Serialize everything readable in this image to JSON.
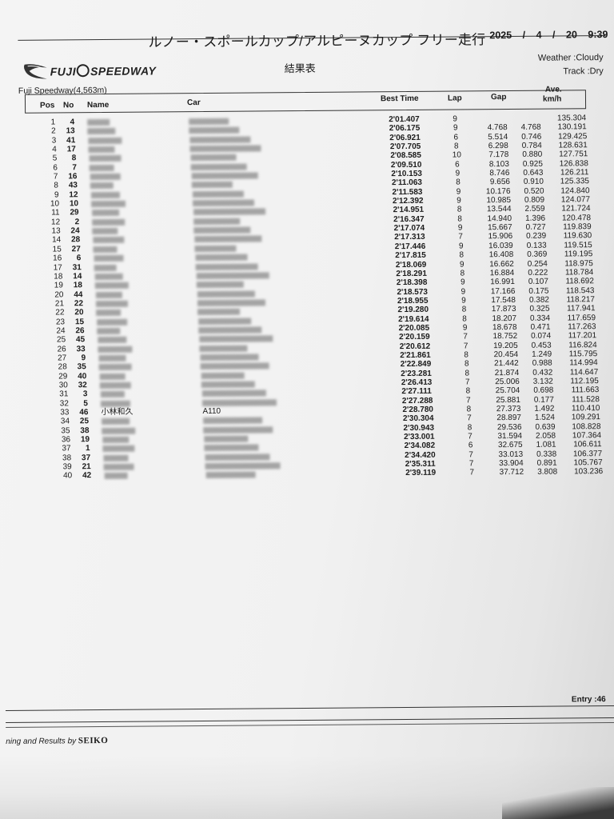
{
  "title": "ルノー・スポールカップ/アルピーヌカップ フリー走行",
  "date": "2025 / 4 / 20",
  "time": "9:39",
  "logo_text": "FUJI SPEEDWAY",
  "subtitle": "結果表",
  "weather": "Weather :Cloudy",
  "track_condition": "Track :Dry",
  "circuit": "Fuji Speedway(4,563m)",
  "columns": {
    "pos": "Pos",
    "no": "No",
    "name": "Name",
    "car": "Car",
    "best": "Best Time",
    "lap": "Lap",
    "gap": "Gap",
    "ave1": "Ave.",
    "ave2": "km/h"
  },
  "rows": [
    {
      "pos": "1",
      "no": "4",
      "name": "",
      "car": "",
      "best": "2'01.407",
      "lap": "9",
      "gap": "",
      "diff": "",
      "ave": "135.304"
    },
    {
      "pos": "2",
      "no": "13",
      "name": "",
      "car": "",
      "best": "2'06.175",
      "lap": "9",
      "gap": "4.768",
      "diff": "4.768",
      "ave": "130.191"
    },
    {
      "pos": "3",
      "no": "41",
      "name": "",
      "car": "",
      "best": "2'06.921",
      "lap": "6",
      "gap": "5.514",
      "diff": "0.746",
      "ave": "129.425"
    },
    {
      "pos": "4",
      "no": "17",
      "name": "",
      "car": "",
      "best": "2'07.705",
      "lap": "8",
      "gap": "6.298",
      "diff": "0.784",
      "ave": "128.631"
    },
    {
      "pos": "5",
      "no": "8",
      "name": "",
      "car": "",
      "best": "2'08.585",
      "lap": "10",
      "gap": "7.178",
      "diff": "0.880",
      "ave": "127.751"
    },
    {
      "pos": "6",
      "no": "7",
      "name": "",
      "car": "",
      "best": "2'09.510",
      "lap": "6",
      "gap": "8.103",
      "diff": "0.925",
      "ave": "126.838"
    },
    {
      "pos": "7",
      "no": "16",
      "name": "",
      "car": "",
      "best": "2'10.153",
      "lap": "9",
      "gap": "8.746",
      "diff": "0.643",
      "ave": "126.211"
    },
    {
      "pos": "8",
      "no": "43",
      "name": "",
      "car": "",
      "best": "2'11.063",
      "lap": "8",
      "gap": "9.656",
      "diff": "0.910",
      "ave": "125.335"
    },
    {
      "pos": "9",
      "no": "12",
      "name": "",
      "car": "",
      "best": "2'11.583",
      "lap": "9",
      "gap": "10.176",
      "diff": "0.520",
      "ave": "124.840"
    },
    {
      "pos": "10",
      "no": "10",
      "name": "",
      "car": "",
      "best": "2'12.392",
      "lap": "9",
      "gap": "10.985",
      "diff": "0.809",
      "ave": "124.077"
    },
    {
      "pos": "11",
      "no": "29",
      "name": "",
      "car": "",
      "best": "2'14.951",
      "lap": "8",
      "gap": "13.544",
      "diff": "2.559",
      "ave": "121.724"
    },
    {
      "pos": "12",
      "no": "2",
      "name": "",
      "car": "",
      "best": "2'16.347",
      "lap": "8",
      "gap": "14.940",
      "diff": "1.396",
      "ave": "120.478"
    },
    {
      "pos": "13",
      "no": "24",
      "name": "",
      "car": "",
      "best": "2'17.074",
      "lap": "9",
      "gap": "15.667",
      "diff": "0.727",
      "ave": "119.839"
    },
    {
      "pos": "14",
      "no": "28",
      "name": "",
      "car": "",
      "best": "2'17.313",
      "lap": "7",
      "gap": "15.906",
      "diff": "0.239",
      "ave": "119.630"
    },
    {
      "pos": "15",
      "no": "27",
      "name": "",
      "car": "",
      "best": "2'17.446",
      "lap": "9",
      "gap": "16.039",
      "diff": "0.133",
      "ave": "119.515"
    },
    {
      "pos": "16",
      "no": "6",
      "name": "",
      "car": "",
      "best": "2'17.815",
      "lap": "8",
      "gap": "16.408",
      "diff": "0.369",
      "ave": "119.195"
    },
    {
      "pos": "17",
      "no": "31",
      "name": "",
      "car": "",
      "best": "2'18.069",
      "lap": "9",
      "gap": "16.662",
      "diff": "0.254",
      "ave": "118.975"
    },
    {
      "pos": "18",
      "no": "14",
      "name": "",
      "car": "",
      "best": "2'18.291",
      "lap": "8",
      "gap": "16.884",
      "diff": "0.222",
      "ave": "118.784"
    },
    {
      "pos": "19",
      "no": "18",
      "name": "",
      "car": "",
      "best": "2'18.398",
      "lap": "9",
      "gap": "16.991",
      "diff": "0.107",
      "ave": "118.692"
    },
    {
      "pos": "20",
      "no": "44",
      "name": "",
      "car": "",
      "best": "2'18.573",
      "lap": "9",
      "gap": "17.166",
      "diff": "0.175",
      "ave": "118.543"
    },
    {
      "pos": "21",
      "no": "22",
      "name": "",
      "car": "",
      "best": "2'18.955",
      "lap": "9",
      "gap": "17.548",
      "diff": "0.382",
      "ave": "118.217"
    },
    {
      "pos": "22",
      "no": "20",
      "name": "",
      "car": "",
      "best": "2'19.280",
      "lap": "8",
      "gap": "17.873",
      "diff": "0.325",
      "ave": "117.941"
    },
    {
      "pos": "23",
      "no": "15",
      "name": "",
      "car": "",
      "best": "2'19.614",
      "lap": "8",
      "gap": "18.207",
      "diff": "0.334",
      "ave": "117.659"
    },
    {
      "pos": "24",
      "no": "26",
      "name": "",
      "car": "",
      "best": "2'20.085",
      "lap": "9",
      "gap": "18.678",
      "diff": "0.471",
      "ave": "117.263"
    },
    {
      "pos": "25",
      "no": "45",
      "name": "",
      "car": "",
      "best": "2'20.159",
      "lap": "7",
      "gap": "18.752",
      "diff": "0.074",
      "ave": "117.201"
    },
    {
      "pos": "26",
      "no": "33",
      "name": "",
      "car": "",
      "best": "2'20.612",
      "lap": "7",
      "gap": "19.205",
      "diff": "0.453",
      "ave": "116.824"
    },
    {
      "pos": "27",
      "no": "9",
      "name": "",
      "car": "",
      "best": "2'21.861",
      "lap": "8",
      "gap": "20.454",
      "diff": "1.249",
      "ave": "115.795"
    },
    {
      "pos": "28",
      "no": "35",
      "name": "",
      "car": "",
      "best": "2'22.849",
      "lap": "8",
      "gap": "21.442",
      "diff": "0.988",
      "ave": "114.994"
    },
    {
      "pos": "29",
      "no": "40",
      "name": "",
      "car": "",
      "best": "2'23.281",
      "lap": "8",
      "gap": "21.874",
      "diff": "0.432",
      "ave": "114.647"
    },
    {
      "pos": "30",
      "no": "32",
      "name": "",
      "car": "",
      "best": "2'26.413",
      "lap": "7",
      "gap": "25.006",
      "diff": "3.132",
      "ave": "112.195"
    },
    {
      "pos": "31",
      "no": "3",
      "name": "",
      "car": "",
      "best": "2'27.111",
      "lap": "8",
      "gap": "25.704",
      "diff": "0.698",
      "ave": "111.663"
    },
    {
      "pos": "32",
      "no": "5",
      "name": "",
      "car": "",
      "best": "2'27.288",
      "lap": "7",
      "gap": "25.881",
      "diff": "0.177",
      "ave": "111.528"
    },
    {
      "pos": "33",
      "no": "46",
      "name": "小林和久",
      "car": "A110",
      "best": "2'28.780",
      "lap": "8",
      "gap": "27.373",
      "diff": "1.492",
      "ave": "110.410"
    },
    {
      "pos": "34",
      "no": "25",
      "name": "",
      "car": "",
      "best": "2'30.304",
      "lap": "7",
      "gap": "28.897",
      "diff": "1.524",
      "ave": "109.291"
    },
    {
      "pos": "35",
      "no": "38",
      "name": "",
      "car": "",
      "best": "2'30.943",
      "lap": "8",
      "gap": "29.536",
      "diff": "0.639",
      "ave": "108.828"
    },
    {
      "pos": "36",
      "no": "19",
      "name": "",
      "car": "",
      "best": "2'33.001",
      "lap": "7",
      "gap": "31.594",
      "diff": "2.058",
      "ave": "107.364"
    },
    {
      "pos": "37",
      "no": "1",
      "name": "",
      "car": "",
      "best": "2'34.082",
      "lap": "6",
      "gap": "32.675",
      "diff": "1.081",
      "ave": "106.611"
    },
    {
      "pos": "38",
      "no": "37",
      "name": "",
      "car": "",
      "best": "2'34.420",
      "lap": "7",
      "gap": "33.013",
      "diff": "0.338",
      "ave": "106.377"
    },
    {
      "pos": "39",
      "no": "21",
      "name": "",
      "car": "",
      "best": "2'35.311",
      "lap": "7",
      "gap": "33.904",
      "diff": "0.891",
      "ave": "105.767"
    },
    {
      "pos": "40",
      "no": "42",
      "name": "",
      "car": "",
      "best": "2'39.119",
      "lap": "7",
      "gap": "37.712",
      "diff": "3.808",
      "ave": "103.236"
    }
  ],
  "entry": "Entry :46",
  "credit_prefix": "ning and Results by",
  "credit_brand": "SEIKO"
}
